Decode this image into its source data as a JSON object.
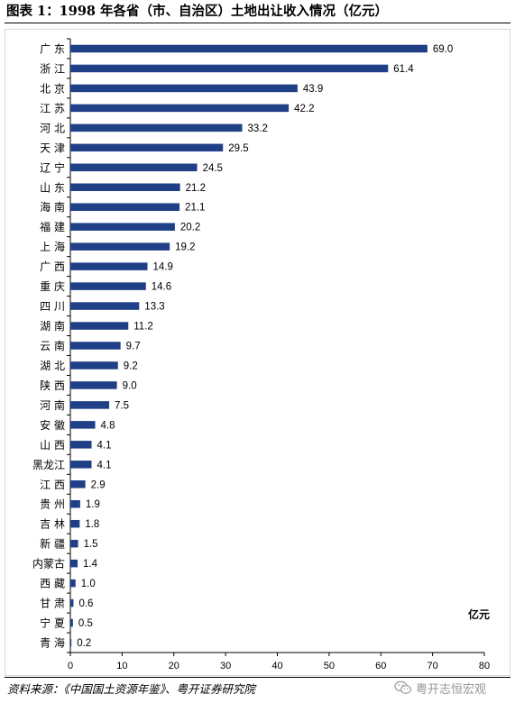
{
  "figure": {
    "title": "图表 1：1998 年各省（市、自治区）土地出让收入情况（亿元）",
    "source": "资料来源：《中国国土资源年鉴》、粤开证券研究院",
    "watermark": "粤开志恒宏观"
  },
  "chart_data": {
    "type": "bar",
    "orientation": "horizontal",
    "title": "",
    "unit_label": "亿元",
    "xlim": [
      0,
      80
    ],
    "xticks": [
      "0",
      "10",
      "20",
      "30",
      "40",
      "50",
      "60",
      "70",
      "80"
    ],
    "bar_color": "#1f3f87",
    "grid": false,
    "legend": "none",
    "categories": [
      "广 东",
      "浙 江",
      "北 京",
      "江 苏",
      "河 北",
      "天 津",
      "辽 宁",
      "山 东",
      "海 南",
      "福 建",
      "上 海",
      "广 西",
      "重 庆",
      "四 川",
      "湖 南",
      "云 南",
      "湖 北",
      "陕 西",
      "河 南",
      "安 徽",
      "山 西",
      "黑龙江",
      "江 西",
      "贵 州",
      "吉 林",
      "新 疆",
      "内蒙古",
      "西 藏",
      "甘 肃",
      "宁 夏",
      "青 海"
    ],
    "values": [
      69.0,
      61.4,
      43.9,
      42.2,
      33.2,
      29.5,
      24.5,
      21.2,
      21.1,
      20.2,
      19.2,
      14.9,
      14.6,
      13.3,
      11.2,
      9.7,
      9.2,
      9.0,
      7.5,
      4.8,
      4.1,
      4.1,
      2.9,
      1.9,
      1.8,
      1.5,
      1.4,
      1.0,
      0.6,
      0.5,
      0.2
    ],
    "value_labels": [
      "69.0",
      "61.4",
      "43.9",
      "42.2",
      "33.2",
      "29.5",
      "24.5",
      "21.2",
      "21.1",
      "20.2",
      "19.2",
      "14.9",
      "14.6",
      "13.3",
      "11.2",
      "9.7",
      "9.2",
      "9.0",
      "7.5",
      "4.8",
      "4.1",
      "4.1",
      "2.9",
      "1.9",
      "1.8",
      "1.5",
      "1.4",
      "1.0",
      "0.6",
      "0.5",
      "0.2"
    ]
  }
}
